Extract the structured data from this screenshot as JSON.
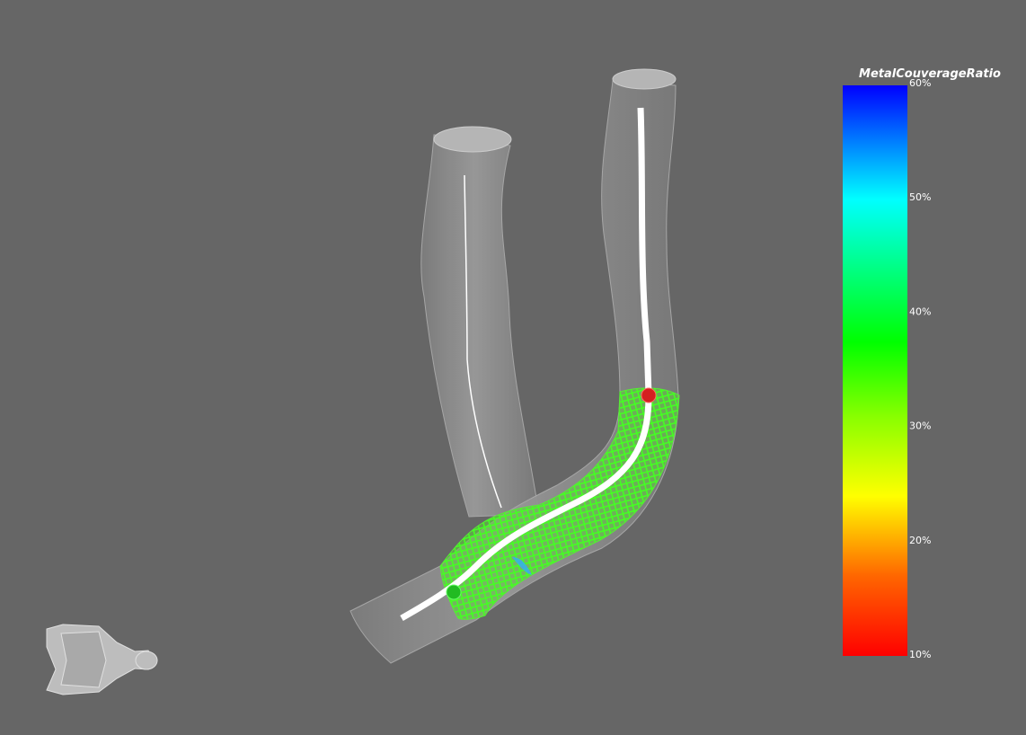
{
  "colorbar": {
    "title": "MetalCouverageRatio",
    "ticks": [
      {
        "value": 60,
        "label": "60%"
      },
      {
        "value": 50,
        "label": "50%"
      },
      {
        "value": 40,
        "label": "40%"
      },
      {
        "value": 30,
        "label": "30%"
      },
      {
        "value": 20,
        "label": "20%"
      },
      {
        "value": 10,
        "label": "10%"
      }
    ]
  }
}
